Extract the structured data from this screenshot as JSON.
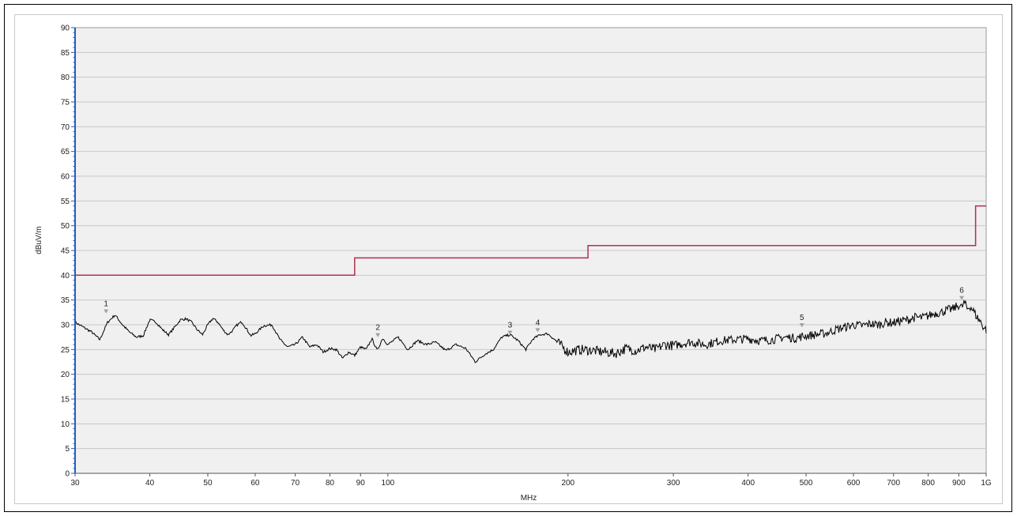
{
  "chart_data": {
    "type": "line",
    "title": "",
    "xlabel": "MHz",
    "ylabel": "dBuV/m",
    "x_scale": "log",
    "xlim": [
      30,
      1000
    ],
    "ylim": [
      0,
      90
    ],
    "grid": true,
    "x_ticks": [
      {
        "value": 30,
        "label": "30"
      },
      {
        "value": 40,
        "label": "40"
      },
      {
        "value": 50,
        "label": "50"
      },
      {
        "value": 60,
        "label": "60"
      },
      {
        "value": 70,
        "label": "70"
      },
      {
        "value": 80,
        "label": "80"
      },
      {
        "value": 90,
        "label": "90"
      },
      {
        "value": 100,
        "label": "100"
      },
      {
        "value": 200,
        "label": "200"
      },
      {
        "value": 300,
        "label": "300"
      },
      {
        "value": 400,
        "label": "400"
      },
      {
        "value": 500,
        "label": "500"
      },
      {
        "value": 600,
        "label": "600"
      },
      {
        "value": 700,
        "label": "700"
      },
      {
        "value": 800,
        "label": "800"
      },
      {
        "value": 900,
        "label": "900"
      },
      {
        "value": 1000,
        "label": "1G"
      }
    ],
    "y_ticks": [
      "0",
      "5",
      "10",
      "15",
      "20",
      "25",
      "30",
      "35",
      "40",
      "45",
      "50",
      "55",
      "60",
      "65",
      "70",
      "75",
      "80",
      "85",
      "90"
    ],
    "colors": {
      "limit": "#b03050",
      "measurement": "#000000",
      "marker": "#a0a0a0",
      "plot_bg": "#f0f0f0",
      "grid": "#c8c8c8",
      "left_axis": "#1f5fbf"
    },
    "limit_line": [
      {
        "x": 30,
        "y": 40
      },
      {
        "x": 88,
        "y": 40
      },
      {
        "x": 88,
        "y": 43.5
      },
      {
        "x": 216,
        "y": 43.5
      },
      {
        "x": 216,
        "y": 46
      },
      {
        "x": 960,
        "y": 46
      },
      {
        "x": 960,
        "y": 54
      },
      {
        "x": 1000,
        "y": 54
      }
    ],
    "measurement": {
      "x": [
        30,
        31,
        32,
        33,
        34,
        35,
        36,
        37,
        38,
        39,
        40,
        41,
        42,
        43,
        44,
        45,
        46,
        47,
        48,
        49,
        50,
        51,
        52,
        53,
        54,
        55,
        56,
        57,
        58,
        59,
        60,
        62,
        64,
        66,
        68,
        70,
        72,
        74,
        76,
        78,
        80,
        82,
        84,
        86,
        88,
        90,
        92,
        94,
        96,
        98,
        100,
        104,
        108,
        112,
        116,
        120,
        125,
        130,
        135,
        140,
        145,
        150,
        155,
        160,
        165,
        170,
        175,
        180,
        185,
        190,
        200,
        210,
        220,
        230,
        240,
        250,
        260,
        270,
        280,
        290,
        300,
        320,
        340,
        360,
        380,
        400,
        420,
        440,
        460,
        480,
        500,
        520,
        540,
        560,
        580,
        600,
        620,
        640,
        660,
        680,
        700,
        720,
        740,
        760,
        780,
        800,
        820,
        840,
        860,
        880,
        900,
        910,
        920,
        930,
        940,
        950,
        960,
        970,
        980,
        990,
        1000
      ],
      "y": [
        30.5,
        29.5,
        28.5,
        27,
        30.5,
        32,
        30,
        28.5,
        27.5,
        27.8,
        31,
        30.5,
        29,
        28,
        29.5,
        31,
        31.2,
        30.5,
        29,
        28,
        30,
        31.3,
        30.5,
        29,
        28,
        28.8,
        30,
        30.6,
        29.2,
        27.8,
        28.2,
        29.8,
        30,
        27,
        25.5,
        26,
        27.5,
        25.5,
        26,
        24.5,
        25.2,
        25,
        23.2,
        24.5,
        23.8,
        25.5,
        25,
        27.2,
        24.8,
        27.3,
        26,
        27.5,
        25,
        26.8,
        26,
        26.5,
        24.8,
        26,
        25.2,
        22.5,
        24,
        25,
        27.5,
        28,
        26.8,
        25,
        27.2,
        28,
        28.2,
        27,
        24.5,
        25,
        24.8,
        24.5,
        24.2,
        25.2,
        24.8,
        25.5,
        25,
        26,
        25.8,
        26.5,
        26,
        26.8,
        27,
        27.2,
        26.8,
        27,
        27.5,
        27.3,
        27.8,
        28,
        28.3,
        29,
        29.5,
        30,
        29.8,
        30.2,
        30,
        30.5,
        30.4,
        30.8,
        31,
        31.5,
        31.4,
        31.8,
        32.3,
        32.5,
        33,
        33.2,
        34,
        33.5,
        34.5,
        33.2,
        33.8,
        33,
        32,
        31.2,
        30.5,
        29.5,
        29
      ]
    },
    "markers": [
      {
        "label": "1",
        "x": 33.8,
        "y": 32.3
      },
      {
        "label": "2",
        "x": 96.2,
        "y": 27.5
      },
      {
        "label": "3",
        "x": 160,
        "y": 28
      },
      {
        "label": "4",
        "x": 178,
        "y": 28.5
      },
      {
        "label": "5",
        "x": 492,
        "y": 29.5
      },
      {
        "label": "6",
        "x": 910,
        "y": 35
      }
    ]
  }
}
